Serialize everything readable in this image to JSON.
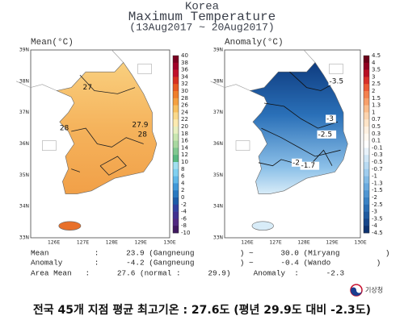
{
  "header": {
    "title": "Korea",
    "subtitle": "Maximum Temperature",
    "period": "(13Aug2017 ~ 20Aug2017)"
  },
  "maps": [
    {
      "label": "Mean(°C)",
      "colorbar": {
        "labels": [
          "40",
          "38",
          "36",
          "34",
          "32",
          "30",
          "28",
          "26",
          "24",
          "22",
          "20",
          "18",
          "16",
          "14",
          "12",
          "10",
          "8",
          "6",
          "4",
          "2",
          "0",
          "-2",
          "-4",
          "-6",
          "-8",
          "-10"
        ],
        "colors": [
          "#7a0020",
          "#a00028",
          "#c0102a",
          "#d7301f",
          "#e85a20",
          "#f07e2a",
          "#f5a040",
          "#f8c060",
          "#fad98a",
          "#fceab0",
          "#e8f0c0",
          "#c8e6b0",
          "#a8d8a0",
          "#80c890",
          "#58b880",
          "#a0e0f0",
          "#80d0f0",
          "#60b8e8",
          "#4098d8",
          "#2878c0",
          "#1c5ca8",
          "#3040a0",
          "#403090",
          "#502880",
          "#401860"
        ]
      },
      "contour_labels": [
        "27",
        "28",
        "27.9",
        "28"
      ]
    },
    {
      "label": "Anomaly(°C)",
      "colorbar": {
        "labels": [
          "4.5",
          "4",
          "3.5",
          "3",
          "2.5",
          "2",
          "1.5",
          "1.3",
          "1",
          "0.7",
          "0.5",
          "0.3",
          "0.1",
          "-0.1",
          "-0.3",
          "-0.5",
          "-0.7",
          "-1",
          "-1.3",
          "-1.5",
          "-2",
          "-2.5",
          "-3",
          "-3.5",
          "-4",
          "-4.5"
        ],
        "colors": [
          "#6a0018",
          "#900020",
          "#b81024",
          "#d8302a",
          "#ec5a36",
          "#f4804e",
          "#f8a06a",
          "#fbbd8c",
          "#fcd4ae",
          "#fde4c8",
          "#fef0e0",
          "#fff8f0",
          "#ffffff",
          "#e8f2fa",
          "#d0e6f6",
          "#b8daf2",
          "#a0cdee",
          "#84bce6",
          "#6aaade",
          "#5096d2",
          "#3a82c4",
          "#2a6eb4",
          "#1e5aa0",
          "#15468a",
          "#0c3270"
        ]
      },
      "contour_labels": [
        "-3.5",
        "-3",
        "-2.5",
        "-2",
        "-1.7"
      ]
    }
  ],
  "axes": {
    "lat_labels": [
      "39N",
      "38N",
      "37N",
      "36N",
      "35N",
      "34N",
      "33N"
    ],
    "lon_labels": [
      "126E",
      "127E",
      "128E",
      "129E",
      "130E"
    ]
  },
  "stats": {
    "lines": [
      "Mean          :      23.9 (Gangneung          ) ~      30.0 (Miryang          )",
      "Anomaly       :      -4.2 (Gangneung          ) ~      -0.4 (Wando          )",
      "Area Mean   :      27.6 (normal :      29.9)     Anomaly  :      -2.3"
    ]
  },
  "logo": "기상청",
  "footer": "전국 45개 지점 평균 최고기온 : 27.6도 (평년 29.9도 대비 -2.3도)"
}
